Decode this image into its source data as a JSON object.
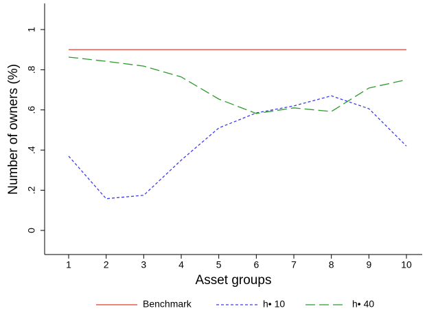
{
  "chart_data": {
    "type": "line",
    "xlabel": "Asset groups",
    "ylabel": "Number of owners (%)",
    "x": [
      1,
      2,
      3,
      4,
      5,
      6,
      7,
      8,
      9,
      10
    ],
    "series": [
      {
        "name": "Benchmark",
        "color": "#e8382f",
        "dash": "none",
        "values": [
          0.9,
          0.9,
          0.9,
          0.9,
          0.9,
          0.9,
          0.9,
          0.9,
          0.9,
          0.9
        ]
      },
      {
        "name": "h• 10",
        "color": "#3b3bf0",
        "dash": "4,3",
        "values": [
          0.37,
          0.158,
          0.175,
          0.35,
          0.51,
          0.585,
          0.62,
          0.67,
          0.606,
          0.42
        ]
      },
      {
        "name": "h• 40",
        "color": "#2a9a2a",
        "dash": "14,6",
        "values": [
          0.863,
          0.842,
          0.818,
          0.764,
          0.654,
          0.582,
          0.61,
          0.592,
          0.709,
          0.75
        ]
      }
    ],
    "xlim": [
      0.36,
      10.42
    ],
    "ylim": [
      -0.12,
      1.13
    ],
    "xticks": [
      1,
      2,
      3,
      4,
      5,
      6,
      7,
      8,
      9,
      10
    ],
    "yticks": [
      0,
      {
        "value": 0.2,
        "label": ".2"
      },
      {
        "value": 0.4,
        "label": ".4"
      },
      {
        "value": 0.6,
        "label": ".6"
      },
      {
        "value": 0.8,
        "label": ".8"
      },
      1
    ],
    "grid": false,
    "legend": "bottom"
  }
}
